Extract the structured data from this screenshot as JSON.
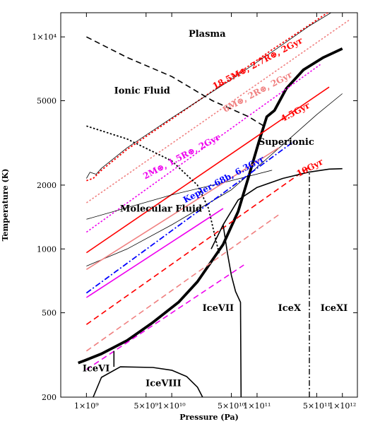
{
  "chart_data": {
    "type": "line",
    "title": "",
    "xlabel": "Pressure (Pa)",
    "ylabel": "Temperature (K)",
    "x_scale": "log",
    "y_scale": "log",
    "xlim": [
      500000000,
      1500000000000
    ],
    "ylim": [
      200,
      13000
    ],
    "grid": false,
    "x_ticks": [
      {
        "value": 1000000000.0,
        "label": "1×10⁹"
      },
      {
        "value": 5000000000.0,
        "label": "5×10⁹"
      },
      {
        "value": 10000000000.0,
        "label": "1×10¹⁰"
      },
      {
        "value": 50000000000.0,
        "label": "5×10¹⁰"
      },
      {
        "value": 100000000000.0,
        "label": "1×10¹¹"
      },
      {
        "value": 500000000000.0,
        "label": "5×10¹¹"
      },
      {
        "value": 1000000000000.0,
        "label": "1×10¹²"
      }
    ],
    "y_ticks": [
      {
        "value": 200,
        "label": "200"
      },
      {
        "value": 500,
        "label": "500"
      },
      {
        "value": 1000,
        "label": "1000"
      },
      {
        "value": 2000,
        "label": "2000"
      },
      {
        "value": 5000,
        "label": "5000"
      },
      {
        "value": 10000,
        "label": "1×10⁴"
      }
    ],
    "region_labels": [
      {
        "text": "Plasma",
        "x": 26000000000.0,
        "y": 10000
      },
      {
        "text": "Ionic Fluid",
        "x": 4500000000.0,
        "y": 5400
      },
      {
        "text": "Superionic",
        "x": 220000000000.0,
        "y": 3100
      },
      {
        "text": "Molecular Fluid",
        "x": 7500000000.0,
        "y": 1500
      },
      {
        "text": "IceVII",
        "x": 35000000000.0,
        "y": 510
      },
      {
        "text": "IceX",
        "x": 240000000000.0,
        "y": 510
      },
      {
        "text": "IceXI",
        "x": 800000000000.0,
        "y": 510
      },
      {
        "text": "IceVI",
        "x": 1300000000.0,
        "y": 265
      },
      {
        "text": "IceVIII",
        "x": 8000000000.0,
        "y": 225
      }
    ],
    "series": [
      {
        "name": "18.5M⊕, 2.7R⊕, 2Gyr",
        "color": "#ff0000",
        "dash": "dotted",
        "width": 1.8,
        "x": [
          1000000000.0,
          1200000000.0,
          1500000000.0,
          3000000000.0,
          10000000000.0,
          50000000000.0,
          150000000000.0,
          400000000000.0,
          1000000000000.0
        ],
        "y": [
          2100,
          2150,
          2350,
          2950,
          4100,
          6400,
          8700,
          11300,
          14500
        ],
        "label": {
          "text": "18.5M⊕, 2.7R⊕, 2Gyr",
          "x": 105000000000.0,
          "y": 7300,
          "angle": -28,
          "color": "#ff0000"
        }
      },
      {
        "name": "thin-black-upper",
        "color": "#000000",
        "dash": "solid",
        "width": 0.8,
        "x": [
          1000000000.0,
          1100000000.0,
          1300000000.0,
          1500000000.0,
          3000000000.0,
          10000000000.0,
          50000000000.0,
          150000000000.0,
          400000000000.0,
          1000000000000.0
        ],
        "y": [
          2150,
          2300,
          2250,
          2400,
          3000,
          4150,
          6300,
          8500,
          11200,
          14000
        ]
      },
      {
        "name": "6M⊕, 2R⊕, 2Gyr",
        "color": "#f08080",
        "dash": "dotted",
        "width": 1.6,
        "x": [
          1000000000.0,
          1200000000000.0
        ],
        "y": [
          1650,
          12000
        ],
        "label": {
          "text": "6M⊕, 2R⊕, 2Gyr",
          "x": 105000000000.0,
          "y": 5350,
          "angle": -28,
          "color": "#f08080"
        }
      },
      {
        "name": "thick-black",
        "color": "#000000",
        "dash": "solid",
        "width": 3.8,
        "x": [
          800000000.0,
          1000000000.0,
          1500000000.0,
          3000000000.0,
          6000000000.0,
          12000000000.0,
          20000000000.0,
          40000000000.0,
          60000000000.0,
          80000000000.0,
          105000000000.0,
          130000000000.0,
          160000000000.0,
          220000000000.0,
          350000000000.0,
          600000000000.0,
          1000000000000.0
        ],
        "y": [
          290,
          300,
          320,
          370,
          450,
          560,
          700,
          1050,
          1500,
          2200,
          3200,
          4200,
          4500,
          5700,
          7000,
          8000,
          8800
        ]
      },
      {
        "name": "2M⊕, 1.5R⊕, 2Gyr",
        "color": "#ee00ee",
        "dash": "dotted",
        "width": 1.6,
        "x": [
          1000000000.0,
          550000000000.0
        ],
        "y": [
          1200,
          7400
        ],
        "label": {
          "text": "2M⊕, 1.5R⊕, 2Gyr",
          "x": 13500000000.0,
          "y": 2650,
          "angle": -28,
          "color": "#ee00ee"
        }
      },
      {
        "name": "4.5Gyr",
        "color": "#ff0000",
        "dash": "solid",
        "width": 1.6,
        "x": [
          1000000000.0,
          700000000000.0
        ],
        "y": [
          960,
          5800
        ],
        "label": {
          "text": "4.5Gyr",
          "x": 290000000000.0,
          "y": 4300,
          "angle": -28,
          "color": "#ff0000"
        }
      },
      {
        "name": "thin-black-lower",
        "color": "#000000",
        "dash": "solid",
        "width": 0.8,
        "x": [
          1000000000.0,
          3000000000.0,
          10000000000.0,
          50000000000.0,
          200000000000.0,
          500000000000.0,
          1000000000000.0
        ],
        "y": [
          830,
          1000,
          1300,
          1900,
          3100,
          4300,
          5400
        ]
      },
      {
        "name": "thin-black-mid",
        "color": "#000000",
        "dash": "solid",
        "width": 0.8,
        "x": [
          1000000000.0,
          10000000000.0,
          50000000000.0,
          150000000000.0
        ],
        "y": [
          1380,
          1800,
          2100,
          2350
        ]
      },
      {
        "name": "pink-solid",
        "color": "#f08080",
        "dash": "solid",
        "width": 1.6,
        "x": [
          1000000000.0,
          180000000000.0
        ],
        "y": [
          800,
          3000
        ]
      },
      {
        "name": "Kepler-68b, 6.3Gyr",
        "color": "#0000ff",
        "dash": "dashdot",
        "width": 1.8,
        "x": [
          1000000000.0,
          280000000000.0
        ],
        "y": [
          620,
          3250
        ],
        "label": {
          "text": "Kepler-68b, 6.3Gyr",
          "x": 42000000000.0,
          "y": 2070,
          "angle": -28,
          "color": "#0000ff"
        }
      },
      {
        "name": "magenta-solid",
        "color": "#ee00ee",
        "dash": "solid",
        "width": 1.6,
        "x": [
          1000000000.0,
          40000000000.0
        ],
        "y": [
          590,
          1550
        ]
      },
      {
        "name": "10Gyr",
        "color": "#ff0000",
        "dash": "dashed",
        "width": 1.6,
        "x": [
          1000000000.0,
          450000000000.0
        ],
        "y": [
          440,
          2500
        ],
        "label": {
          "text": "10Gyr",
          "x": 430000000000.0,
          "y": 2350,
          "angle": -28,
          "color": "#ff0000"
        }
      },
      {
        "name": "pink-dashed",
        "color": "#f08080",
        "dash": "dashed",
        "width": 1.6,
        "x": [
          1000000000.0,
          180000000000.0
        ],
        "y": [
          330,
          1450
        ]
      },
      {
        "name": "magenta-dashed",
        "color": "#ee00ee",
        "dash": "dashed",
        "width": 1.6,
        "x": [
          1000000000.0,
          70000000000.0
        ],
        "y": [
          270,
          840
        ]
      },
      {
        "name": "plasma-boundary",
        "color": "#000000",
        "dash": "dashed",
        "width": 1.6,
        "x": [
          1000000000.0,
          3000000000.0,
          10000000000.0,
          30000000000.0,
          80000000000.0,
          120000000000.0
        ],
        "y": [
          10000,
          8000,
          6500,
          5000,
          4200,
          3800
        ]
      },
      {
        "name": "ionic-molecular-boundary",
        "color": "#000000",
        "dash": "dotted",
        "width": 1.8,
        "x": [
          1000000000.0,
          3000000000.0,
          10000000000.0,
          20000000000.0,
          27000000000.0,
          32000000000.0,
          36000000000.0
        ],
        "y": [
          3800,
          3300,
          2600,
          2000,
          1550,
          1150,
          950
        ]
      },
      {
        "name": "superionic-boundary",
        "color": "#000000",
        "dash": "solid",
        "width": 1.6,
        "x": [
          29000000000.0,
          40000000000.0,
          60000000000.0,
          100000000000.0,
          200000000000.0,
          400000000000.0,
          700000000000.0,
          1000000000000.0
        ],
        "y": [
          1000,
          1300,
          1700,
          1950,
          2150,
          2300,
          2380,
          2390
        ]
      },
      {
        "name": "IceVII-IceX-boundary",
        "color": "#000000",
        "dash": "solid",
        "width": 1.6,
        "x": [
          40000000000.0,
          45000000000.0,
          50000000000.0,
          56000000000.0,
          64000000000.0,
          65000000000.0
        ],
        "y": [
          1300,
          950,
          750,
          630,
          560,
          200
        ]
      },
      {
        "name": "IceX-IceXI-boundary",
        "color": "#000000",
        "dash": "dashdot",
        "width": 1.4,
        "x": [
          410000000000.0,
          410000000000.0
        ],
        "y": [
          200,
          2300
        ]
      },
      {
        "name": "IceVI-IceVII-boundary",
        "color": "#000000",
        "dash": "solid",
        "width": 1.6,
        "x": [
          2100000000.0,
          2100000000.0
        ],
        "y": [
          278,
          330
        ]
      },
      {
        "name": "IceVIII-boundary",
        "color": "#000000",
        "dash": "solid",
        "width": 1.6,
        "x": [
          1200000000.0,
          1500000000.0,
          2500000000.0,
          6000000000.0,
          10000000000.0,
          15000000000.0,
          20000000000.0,
          23000000000.0
        ],
        "y": [
          200,
          248,
          278,
          276,
          268,
          250,
          223,
          200
        ]
      }
    ]
  }
}
